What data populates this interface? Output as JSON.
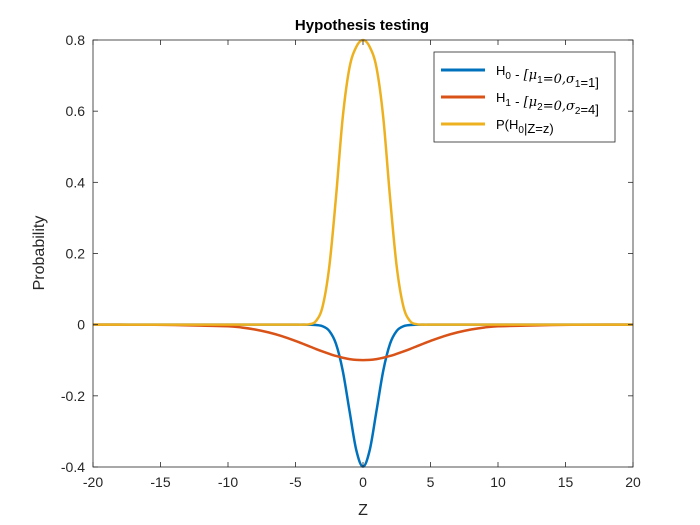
{
  "chart_data": {
    "type": "line",
    "title": "Hypothesis testing",
    "xlabel": "Z",
    "ylabel": "Probability",
    "xlim": [
      -20,
      20
    ],
    "ylim": [
      -0.4,
      0.8
    ],
    "xticks": [
      -20,
      -15,
      -10,
      -5,
      0,
      5,
      10,
      15,
      20
    ],
    "xtick_labels": [
      "-20",
      "-15",
      "-10",
      "-5",
      "0",
      "5",
      "10",
      "15",
      "20"
    ],
    "yticks": [
      -0.4,
      -0.2,
      0,
      0.2,
      0.4,
      0.6,
      0.8
    ],
    "ytick_labels": [
      "-0.4",
      "-0.2",
      "0",
      "0.2",
      "0.4",
      "0.6",
      "0.8"
    ],
    "grid": false,
    "legend_position": "top-right",
    "x": [
      -20,
      -18,
      -16,
      -14,
      -12,
      -10,
      -9,
      -8,
      -7,
      -6,
      -5,
      -4.5,
      -4,
      -3.5,
      -3,
      -2.5,
      -2,
      -1.5,
      -1,
      -0.5,
      0,
      0.5,
      1,
      1.5,
      2,
      2.5,
      3,
      3.5,
      4,
      4.5,
      5,
      6,
      7,
      8,
      9,
      10,
      12,
      14,
      16,
      18,
      20
    ],
    "series": [
      {
        "name": "H0 - [μ1=0,σ1=1]",
        "color": "#0072BD",
        "values": [
          0,
          0,
          0,
          0,
          0,
          0,
          0,
          0,
          0,
          0,
          0,
          0,
          -0.0001,
          -0.0009,
          -0.0044,
          -0.0175,
          -0.054,
          -0.1295,
          -0.242,
          -0.352,
          -0.399,
          -0.352,
          -0.242,
          -0.1295,
          -0.054,
          -0.0175,
          -0.0044,
          -0.0009,
          -0.0001,
          0,
          0,
          0,
          0,
          0,
          0,
          0,
          0,
          0,
          0,
          0,
          0
        ]
      },
      {
        "name": "H1 - [μ2=0,σ2=4]",
        "color": "#D95319",
        "values": [
          0,
          0,
          -0.0003,
          -0.0009,
          -0.0028,
          -0.0044,
          -0.0079,
          -0.0135,
          -0.0217,
          -0.0324,
          -0.0457,
          -0.0529,
          -0.0605,
          -0.0681,
          -0.0753,
          -0.0819,
          -0.088,
          -0.0929,
          -0.0967,
          -0.0991,
          -0.0997,
          -0.0991,
          -0.0967,
          -0.0929,
          -0.088,
          -0.0819,
          -0.0753,
          -0.0681,
          -0.0605,
          -0.0529,
          -0.0457,
          -0.0324,
          -0.0217,
          -0.0135,
          -0.0079,
          -0.0044,
          -0.0028,
          -0.0009,
          -0.0003,
          0,
          0
        ]
      },
      {
        "name": "P(H0|Z=z)",
        "color": "#EDB120",
        "values": [
          0,
          0,
          0,
          0,
          0,
          0,
          0,
          0,
          0,
          0,
          0,
          0,
          0.001,
          0.0095,
          0.0498,
          0.1623,
          0.3587,
          0.5825,
          0.7223,
          0.7805,
          0.8,
          0.7805,
          0.7223,
          0.5825,
          0.3587,
          0.1623,
          0.0498,
          0.0095,
          0.001,
          0,
          0,
          0,
          0,
          0,
          0,
          0,
          0,
          0,
          0,
          0,
          0
        ]
      }
    ]
  }
}
